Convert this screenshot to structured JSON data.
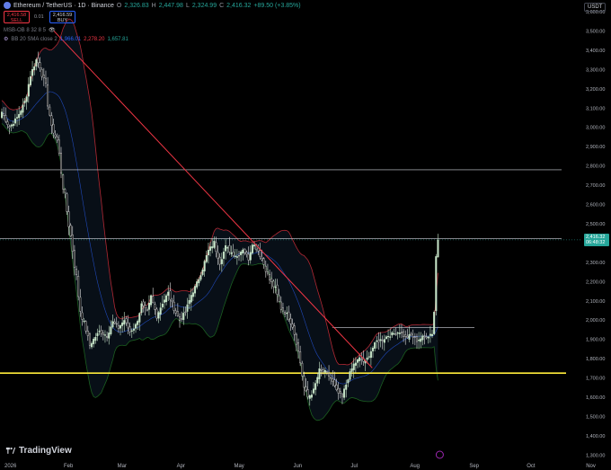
{
  "header": {
    "symbol": "Ethereum / TetherUS · 1D · Binance",
    "ohlc": {
      "o_label": "O",
      "o": "2,326.83",
      "h_label": "H",
      "h": "2,447.98",
      "l_label": "L",
      "l": "2,324.99",
      "c_label": "C",
      "c": "2,416.32",
      "change": "+89.50 (+3.85%)"
    },
    "sell": {
      "price": "2,416.58",
      "label": "SELL"
    },
    "buy": {
      "price": "2,416.59",
      "label": "BUY"
    },
    "spread": "0.01",
    "indicator1": "MSB-OB 8 32 8 5",
    "indicator2": {
      "name": "BB 20 SMA close 2",
      "basis": "1,966.01",
      "upper": "2,278.20",
      "lower": "1,657.81"
    },
    "currency": "USDT"
  },
  "price_tag": {
    "price": "2,416.32",
    "countdown": "06:48:32"
  },
  "brand": "TradingView",
  "colors": {
    "up": "#26a69a",
    "down": "#ef5350",
    "upper_band": "#b22833",
    "lower_band": "#1b5e20",
    "basis": "#2962ff",
    "trendline": "#f23645",
    "support": "#ffeb3b",
    "hline": "#d1d4dc"
  },
  "chart_data": {
    "type": "candlestick",
    "title": "Ethereum / TetherUS · 1D · Binance",
    "y_ticks": [
      1300,
      1400,
      1500,
      1600,
      1700,
      1800,
      1900,
      2000,
      2100,
      2200,
      2300,
      2400,
      2500,
      2600,
      2700,
      2800,
      2900,
      3000,
      3100,
      3200,
      3300,
      3400,
      3500,
      3600
    ],
    "y_tick_labels": [
      "1,300.00",
      "1,400.00",
      "1,500.00",
      "1,600.00",
      "1,700.00",
      "1,800.00",
      "1,900.00",
      "2,000.00",
      "2,100.00",
      "2,200.00",
      "2,300.00",
      "2,400.00",
      "2,500.00",
      "2,600.00",
      "2,700.00",
      "2,800.00",
      "2,900.00",
      "3,000.00",
      "3,100.00",
      "3,200.00",
      "3,300.00",
      "3,400.00",
      "3,500.00",
      "3,600.00"
    ],
    "ylim": [
      1283,
      3642
    ],
    "x_ticks": [
      "2026",
      "Feb",
      "Mar",
      "Apr",
      "May",
      "Jun",
      "Jul",
      "Aug",
      "Sep",
      "Oct",
      "Nov"
    ],
    "horizontal_lines": [
      2780,
      2423,
      1962,
      1725
    ],
    "trendline": {
      "from": {
        "day": 0,
        "price": 3500
      },
      "to": {
        "day": 196,
        "price": 1752
      }
    },
    "current_price": 2416.32,
    "anchors": [
      [
        0,
        3080
      ],
      [
        4,
        3000
      ],
      [
        8,
        3050
      ],
      [
        12,
        3130
      ],
      [
        15,
        3270
      ],
      [
        18,
        3350
      ],
      [
        20,
        3320
      ],
      [
        23,
        3200
      ],
      [
        26,
        3000
      ],
      [
        29,
        2930
      ],
      [
        32,
        2700
      ],
      [
        35,
        2500
      ],
      [
        38,
        2300
      ],
      [
        41,
        2050
      ],
      [
        44,
        1950
      ],
      [
        46,
        1870
      ],
      [
        48,
        1900
      ],
      [
        51,
        1940
      ],
      [
        55,
        1920
      ],
      [
        58,
        1990
      ],
      [
        61,
        1960
      ],
      [
        64,
        2000
      ],
      [
        67,
        1940
      ],
      [
        70,
        1970
      ],
      [
        73,
        2080
      ],
      [
        76,
        2040
      ],
      [
        78,
        2120
      ],
      [
        81,
        2020
      ],
      [
        84,
        2090
      ],
      [
        87,
        2140
      ],
      [
        90,
        2060
      ],
      [
        93,
        2000
      ],
      [
        96,
        2040
      ],
      [
        99,
        2130
      ],
      [
        102,
        2190
      ],
      [
        105,
        2270
      ],
      [
        108,
        2360
      ],
      [
        111,
        2400
      ],
      [
        114,
        2300
      ],
      [
        117,
        2380
      ],
      [
        120,
        2350
      ],
      [
        123,
        2330
      ],
      [
        126,
        2370
      ],
      [
        129,
        2320
      ],
      [
        131,
        2400
      ],
      [
        134,
        2360
      ],
      [
        137,
        2290
      ],
      [
        140,
        2210
      ],
      [
        143,
        2160
      ],
      [
        146,
        2060
      ],
      [
        149,
        2030
      ],
      [
        152,
        1970
      ],
      [
        154,
        1890
      ],
      [
        156,
        1780
      ],
      [
        158,
        1650
      ],
      [
        160,
        1600
      ],
      [
        163,
        1630
      ],
      [
        166,
        1740
      ],
      [
        169,
        1730
      ],
      [
        172,
        1700
      ],
      [
        175,
        1630
      ],
      [
        178,
        1600
      ],
      [
        181,
        1700
      ],
      [
        184,
        1770
      ],
      [
        187,
        1800
      ],
      [
        190,
        1780
      ],
      [
        193,
        1840
      ],
      [
        196,
        1890
      ],
      [
        199,
        1900
      ],
      [
        202,
        1920
      ],
      [
        205,
        1930
      ],
      [
        208,
        1940
      ],
      [
        211,
        1910
      ],
      [
        214,
        1920
      ],
      [
        217,
        1895
      ],
      [
        220,
        1910
      ],
      [
        223,
        1920
      ],
      [
        225,
        1935
      ],
      [
        226,
        2050
      ],
      [
        227,
        2330
      ],
      [
        228,
        2416
      ]
    ],
    "bollinger": {
      "period": 20,
      "stddev": 2,
      "basis": 1966.01,
      "upper": 2278.2,
      "lower": 1657.81
    }
  }
}
